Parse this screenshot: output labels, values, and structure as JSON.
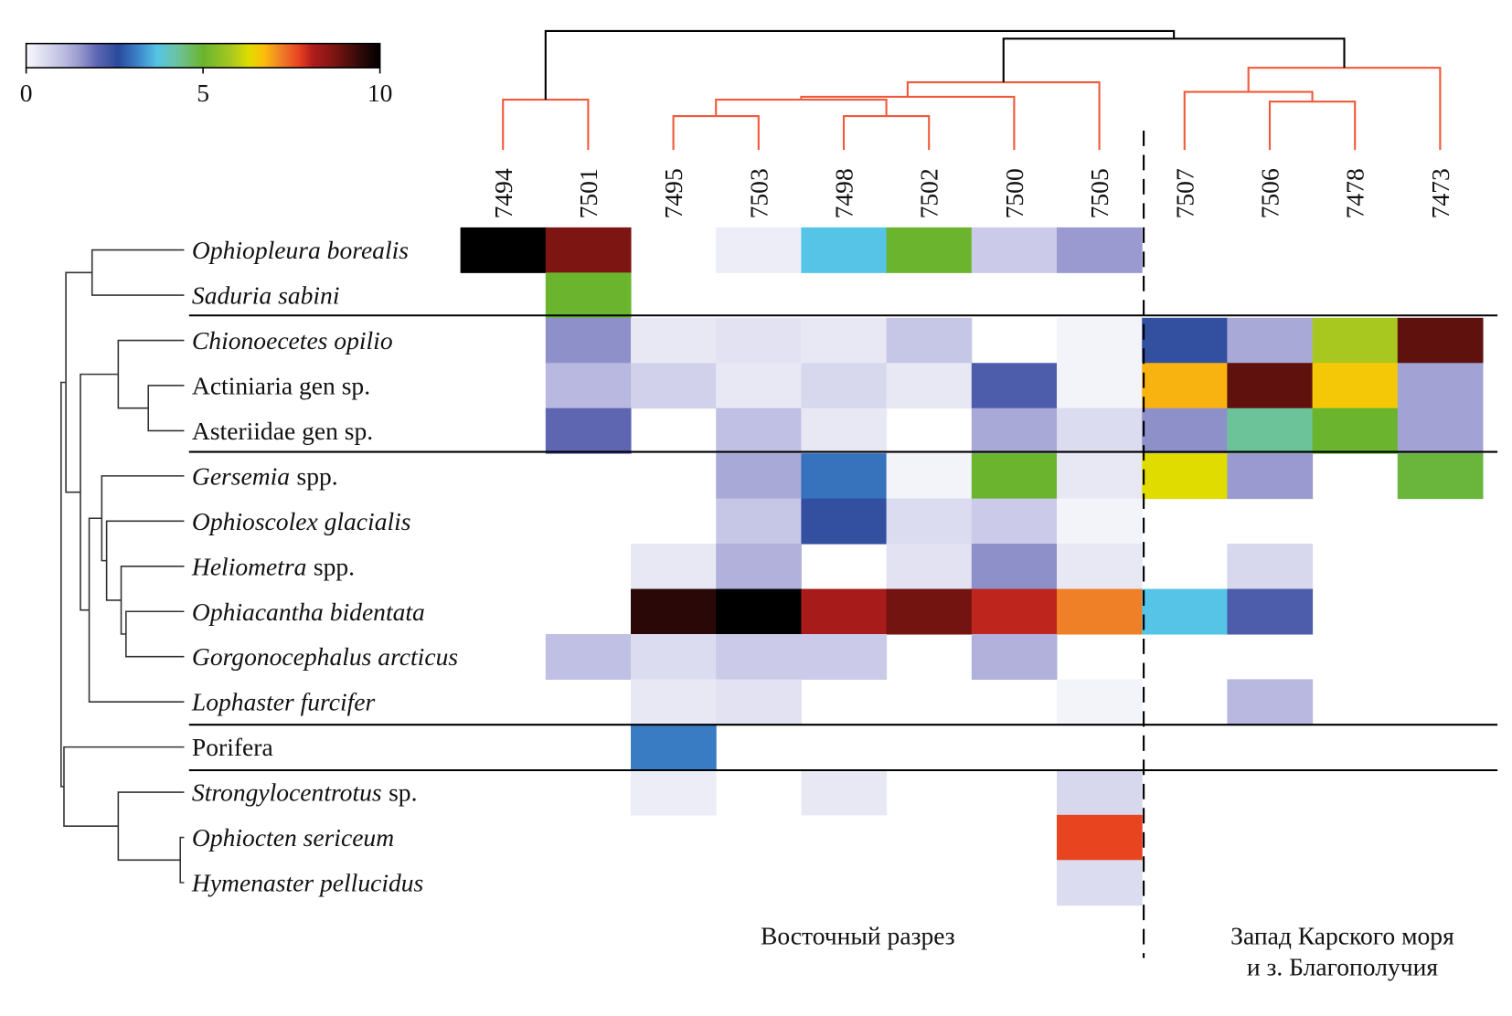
{
  "chart_data": {
    "type": "heatmap",
    "columns": [
      "7494",
      "7501",
      "7495",
      "7503",
      "7498",
      "7502",
      "7500",
      "7505",
      "7507",
      "7506",
      "7478",
      "7473"
    ],
    "rows": [
      {
        "italic": "Ophiopleura borealis"
      },
      {
        "italic": "Saduria sabini"
      },
      {
        "italic": "Chionoecetes opilio"
      },
      {
        "roman": "Actiniaria gen sp."
      },
      {
        "roman": "Asteriidae gen sp."
      },
      {
        "italic": "Gersemia",
        "roman": "spp."
      },
      {
        "italic": "Ophioscolex glacialis"
      },
      {
        "italic": "Heliometra",
        "roman": "spp."
      },
      {
        "italic": "Ophiacantha bidentata"
      },
      {
        "italic": "Gorgonocephalus arcticus"
      },
      {
        "italic": "Lophaster furcifer"
      },
      {
        "roman": "Porifera"
      },
      {
        "italic": "Strongylocentrotus",
        "roman": "sp."
      },
      {
        "italic": "Ophiocten sericeum"
      },
      {
        "italic": "Hymenaster pellucidus"
      }
    ],
    "values": [
      [
        10,
        8.7,
        null,
        0.2,
        3.7,
        5,
        0.8,
        1.5,
        null,
        null,
        null,
        null
      ],
      [
        null,
        5,
        null,
        null,
        null,
        null,
        null,
        null,
        null,
        null,
        null,
        null
      ],
      [
        null,
        1.6,
        0.3,
        0.4,
        0.3,
        0.9,
        null,
        0.1,
        2.5,
        1.3,
        5.8,
        9
      ],
      [
        null,
        1.1,
        0.7,
        0.3,
        0.6,
        0.3,
        2.2,
        0.1,
        6.8,
        9,
        6.6,
        1.4
      ],
      [
        null,
        2,
        null,
        1,
        0.3,
        null,
        1.3,
        0.5,
        1.6,
        4.3,
        5,
        1.4
      ],
      [
        null,
        null,
        null,
        1.3,
        3,
        0.1,
        5,
        0.3,
        6.3,
        1.5,
        null,
        4.9
      ],
      [
        null,
        null,
        null,
        0.9,
        2.5,
        0.5,
        0.8,
        0.1,
        null,
        null,
        null,
        null
      ],
      [
        null,
        null,
        0.3,
        1.2,
        null,
        0.4,
        1.6,
        0.3,
        null,
        0.6,
        null,
        null
      ],
      [
        null,
        null,
        9.5,
        10,
        8.2,
        8.8,
        8,
        7.2,
        3.7,
        2.2,
        null,
        null
      ],
      [
        null,
        1,
        0.5,
        0.8,
        0.8,
        null,
        1.2,
        null,
        null,
        null,
        null,
        null
      ],
      [
        null,
        null,
        0.3,
        0.4,
        null,
        null,
        null,
        0.1,
        null,
        1.1,
        null,
        null
      ],
      [
        null,
        null,
        3.1,
        null,
        null,
        null,
        null,
        null,
        null,
        null,
        null,
        null
      ],
      [
        null,
        null,
        0.2,
        null,
        0.3,
        null,
        null,
        0.6,
        null,
        null,
        null,
        null
      ],
      [
        null,
        null,
        null,
        null,
        null,
        null,
        null,
        7.7,
        null,
        null,
        null,
        null
      ],
      [
        null,
        null,
        null,
        null,
        null,
        null,
        null,
        0.5,
        null,
        null,
        null,
        null
      ]
    ],
    "clim": [
      0,
      10
    ],
    "cticks": [
      0,
      5,
      10
    ],
    "group_labels": [
      [
        "Восточный разрез"
      ],
      [
        "Запад Карского моря",
        "и з. Благополучия"
      ]
    ]
  }
}
